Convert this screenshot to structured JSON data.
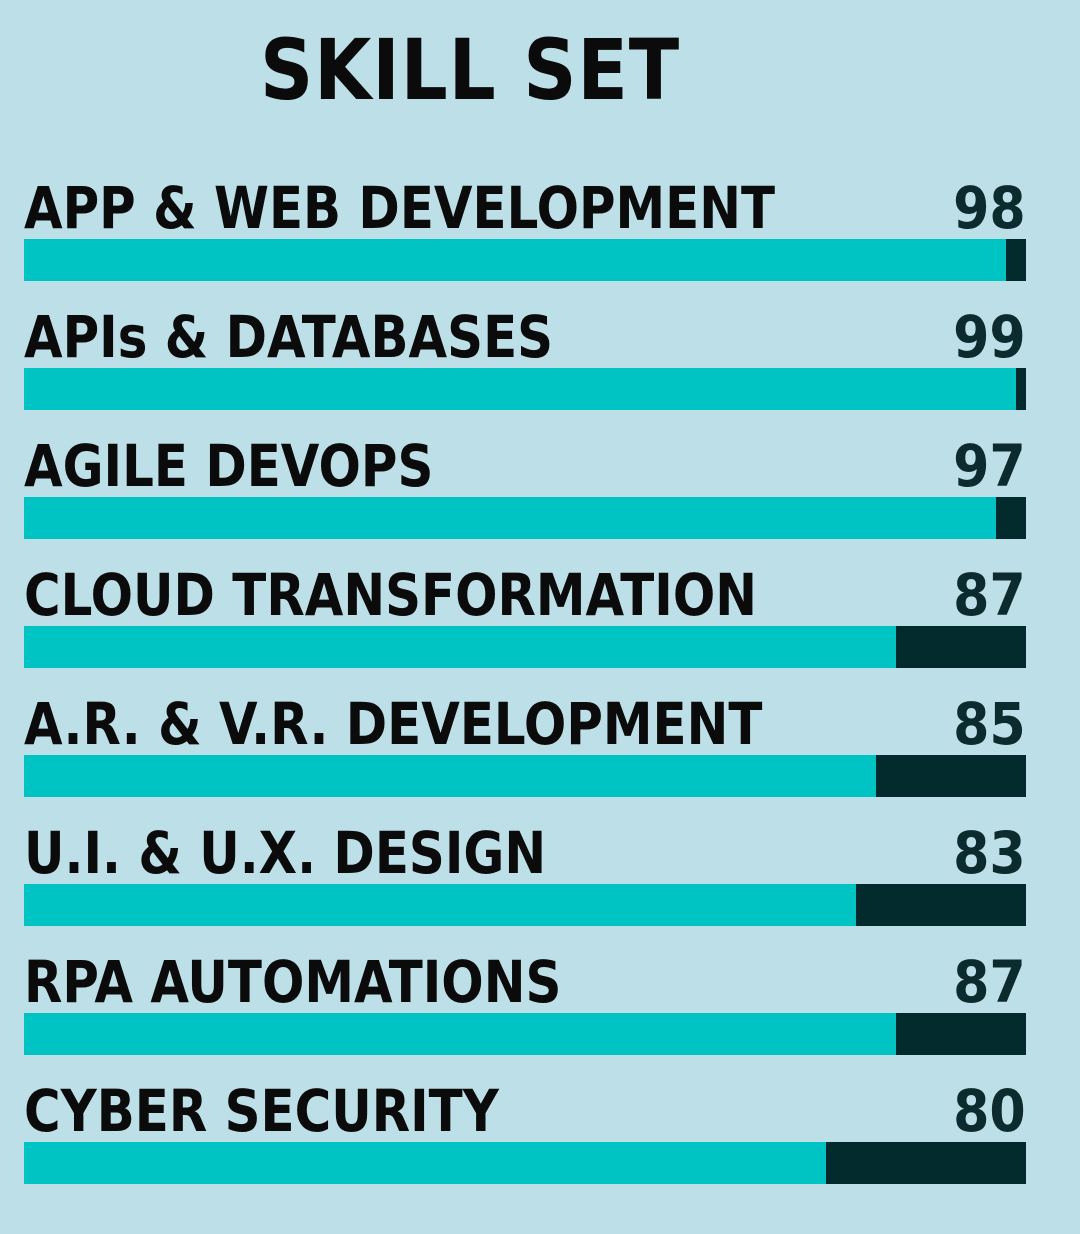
{
  "colors": {
    "background": "#bddfe8",
    "fill": "#00c4c4",
    "track": "#032a2d"
  },
  "chart_data": {
    "type": "bar",
    "title": "SKILL SET",
    "orientation": "horizontal",
    "categories": [
      "APP & WEB DEVELOPMENT",
      "APIs & DATABASES",
      "AGILE DEVOPS",
      "CLOUD TRANSFORMATION",
      "A.R. & V.R. DEVELOPMENT",
      "U.I. & U.X. DESIGN",
      "RPA AUTOMATIONS",
      "CYBER SECURITY"
    ],
    "values": [
      98,
      99,
      97,
      87,
      85,
      83,
      87,
      80
    ],
    "value_labels": [
      "98",
      "99",
      "97",
      "87",
      "85",
      "83",
      "87",
      "80"
    ],
    "xlim": [
      0,
      100
    ]
  }
}
